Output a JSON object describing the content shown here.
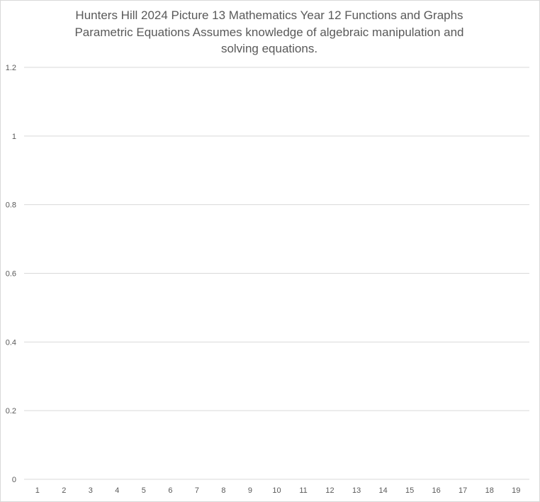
{
  "chart_data": {
    "type": "line",
    "title_lines": [
      "Hunters Hill 2024 Picture 13 Mathematics   Year 12   Functions and Graphs",
      "Parametric Equations   Assumes knowledge of algebraic manipulation and",
      "solving equations."
    ],
    "categories": [
      "1",
      "2",
      "3",
      "4",
      "5",
      "6",
      "7",
      "8",
      "9",
      "10",
      "11",
      "12",
      "13",
      "14",
      "15",
      "16",
      "17",
      "18",
      "19"
    ],
    "y_ticks": [
      "0",
      "0.2",
      "0.4",
      "0.6",
      "0.8",
      "1",
      "1.2"
    ],
    "ylim": [
      0,
      1.2
    ],
    "grid": true,
    "series": []
  }
}
